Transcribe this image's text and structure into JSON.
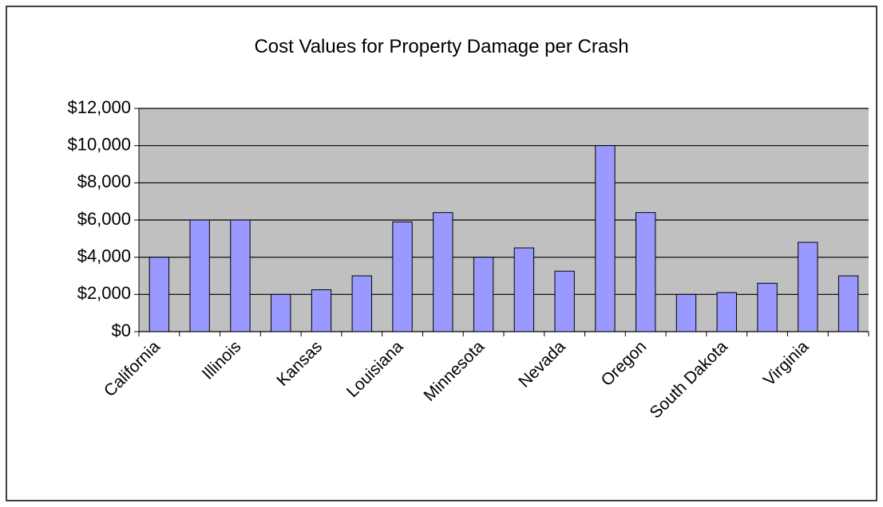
{
  "chart_data": {
    "type": "bar",
    "title": "Cost Values for Property Damage per Crash",
    "categories": [
      "California",
      null,
      "Illinois",
      null,
      "Kansas",
      null,
      "Louisiana",
      null,
      "Minnesota",
      null,
      "Nevada",
      null,
      "Oregon",
      null,
      "South Dakota",
      null,
      "Virginia",
      null
    ],
    "values": [
      4000,
      6000,
      6000,
      2000,
      2250,
      3000,
      5900,
      6400,
      4000,
      4500,
      3250,
      10000,
      6400,
      2000,
      2100,
      2600,
      4800,
      3000
    ],
    "color": "#9999ff",
    "ylim": [
      0,
      12000
    ],
    "yticks": [
      {
        "value": 0,
        "label": "$0"
      },
      {
        "value": 2000,
        "label": "$2,000"
      },
      {
        "value": 4000,
        "label": "$4,000"
      },
      {
        "value": 6000,
        "label": "$6,000"
      },
      {
        "value": 8000,
        "label": "$8,000"
      },
      {
        "value": 10000,
        "label": "$10,000"
      },
      {
        "value": 12000,
        "label": "$12,000"
      }
    ],
    "grid": true
  }
}
